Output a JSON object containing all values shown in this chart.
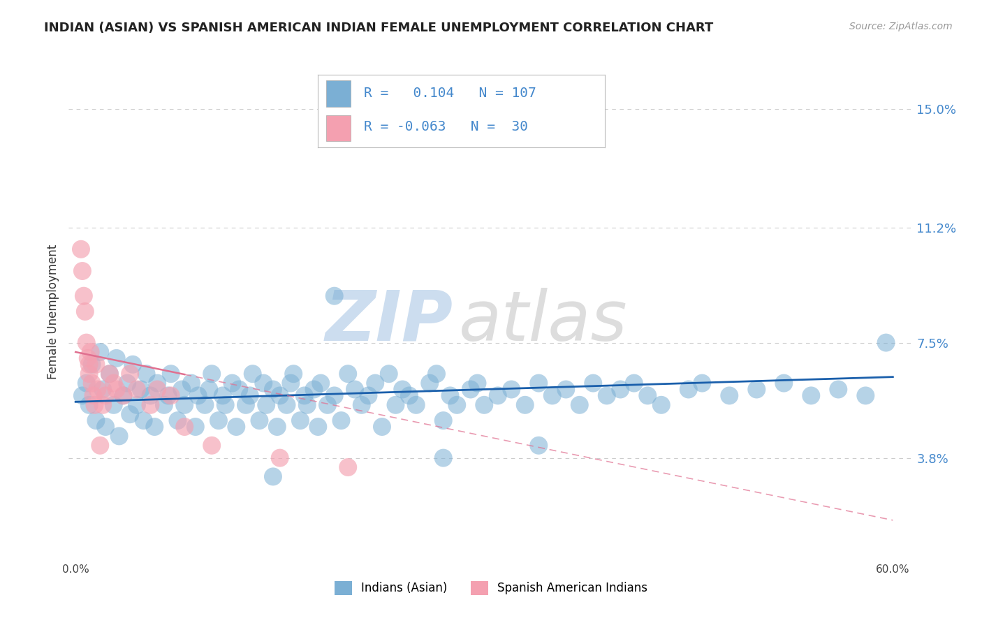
{
  "title": "INDIAN (ASIAN) VS SPANISH AMERICAN INDIAN FEMALE UNEMPLOYMENT CORRELATION CHART",
  "source": "Source: ZipAtlas.com",
  "ylabel": "Female Unemployment",
  "xlim": [
    -0.005,
    0.615
  ],
  "ylim": [
    0.005,
    0.165
  ],
  "yticks": [
    0.038,
    0.075,
    0.112,
    0.15
  ],
  "ytick_labels": [
    "3.8%",
    "7.5%",
    "11.2%",
    "15.0%"
  ],
  "xticks": [
    0.0,
    0.1,
    0.2,
    0.3,
    0.4,
    0.5,
    0.6
  ],
  "xtick_labels": [
    "0.0%",
    "",
    "",
    "",
    "",
    "",
    "60.0%"
  ],
  "legend1_label": "Indians (Asian)",
  "legend2_label": "Spanish American Indians",
  "R1": 0.104,
  "N1": 107,
  "R2": -0.063,
  "N2": 30,
  "blue_color": "#7BAFD4",
  "pink_color": "#F4A0B0",
  "line_blue": "#1A5FAB",
  "line_pink": "#E07090",
  "watermark_zip": "ZIP",
  "watermark_atlas": "atlas",
  "title_color": "#222222",
  "label_color": "#4488CC",
  "background_color": "#FFFFFF",
  "grid_color": "#CCCCCC",
  "source_color": "#999999",
  "blue_scatter_x": [
    0.005,
    0.008,
    0.01,
    0.012,
    0.015,
    0.018,
    0.02,
    0.022,
    0.025,
    0.028,
    0.03,
    0.032,
    0.035,
    0.038,
    0.04,
    0.042,
    0.045,
    0.048,
    0.05,
    0.052,
    0.055,
    0.058,
    0.06,
    0.065,
    0.068,
    0.07,
    0.075,
    0.078,
    0.08,
    0.085,
    0.088,
    0.09,
    0.095,
    0.098,
    0.1,
    0.105,
    0.108,
    0.11,
    0.115,
    0.118,
    0.12,
    0.125,
    0.128,
    0.13,
    0.135,
    0.138,
    0.14,
    0.145,
    0.148,
    0.15,
    0.155,
    0.158,
    0.16,
    0.165,
    0.168,
    0.17,
    0.175,
    0.178,
    0.18,
    0.185,
    0.19,
    0.195,
    0.2,
    0.205,
    0.21,
    0.215,
    0.22,
    0.225,
    0.23,
    0.235,
    0.24,
    0.245,
    0.25,
    0.26,
    0.265,
    0.27,
    0.275,
    0.28,
    0.29,
    0.295,
    0.3,
    0.31,
    0.32,
    0.33,
    0.34,
    0.35,
    0.36,
    0.37,
    0.38,
    0.39,
    0.4,
    0.41,
    0.42,
    0.43,
    0.45,
    0.46,
    0.48,
    0.5,
    0.52,
    0.54,
    0.56,
    0.58,
    0.595,
    0.34,
    0.27,
    0.19,
    0.145
  ],
  "blue_scatter_y": [
    0.058,
    0.062,
    0.055,
    0.068,
    0.05,
    0.072,
    0.06,
    0.048,
    0.065,
    0.055,
    0.07,
    0.045,
    0.058,
    0.062,
    0.052,
    0.068,
    0.055,
    0.06,
    0.05,
    0.065,
    0.058,
    0.048,
    0.062,
    0.055,
    0.058,
    0.065,
    0.05,
    0.06,
    0.055,
    0.062,
    0.048,
    0.058,
    0.055,
    0.06,
    0.065,
    0.05,
    0.058,
    0.055,
    0.062,
    0.048,
    0.06,
    0.055,
    0.058,
    0.065,
    0.05,
    0.062,
    0.055,
    0.06,
    0.048,
    0.058,
    0.055,
    0.062,
    0.065,
    0.05,
    0.058,
    0.055,
    0.06,
    0.048,
    0.062,
    0.055,
    0.058,
    0.05,
    0.065,
    0.06,
    0.055,
    0.058,
    0.062,
    0.048,
    0.065,
    0.055,
    0.06,
    0.058,
    0.055,
    0.062,
    0.065,
    0.05,
    0.058,
    0.055,
    0.06,
    0.062,
    0.055,
    0.058,
    0.06,
    0.055,
    0.062,
    0.058,
    0.06,
    0.055,
    0.062,
    0.058,
    0.06,
    0.062,
    0.058,
    0.055,
    0.06,
    0.062,
    0.058,
    0.06,
    0.062,
    0.058,
    0.06,
    0.058,
    0.075,
    0.042,
    0.038,
    0.09,
    0.032
  ],
  "pink_scatter_x": [
    0.004,
    0.005,
    0.006,
    0.007,
    0.008,
    0.009,
    0.01,
    0.01,
    0.011,
    0.012,
    0.013,
    0.014,
    0.015,
    0.016,
    0.018,
    0.02,
    0.022,
    0.025,
    0.028,
    0.03,
    0.035,
    0.04,
    0.045,
    0.055,
    0.06,
    0.07,
    0.08,
    0.1,
    0.15,
    0.2
  ],
  "pink_scatter_y": [
    0.105,
    0.098,
    0.09,
    0.085,
    0.075,
    0.07,
    0.068,
    0.065,
    0.072,
    0.062,
    0.058,
    0.055,
    0.068,
    0.06,
    0.042,
    0.055,
    0.058,
    0.065,
    0.062,
    0.06,
    0.058,
    0.065,
    0.06,
    0.055,
    0.06,
    0.058,
    0.048,
    0.042,
    0.038,
    0.035
  ],
  "blue_trend_x": [
    0.0,
    0.6
  ],
  "blue_trend_y": [
    0.056,
    0.064
  ],
  "pink_trend_x0": 0.0,
  "pink_trend_y0": 0.072,
  "pink_trend_x1": 0.6,
  "pink_trend_y1": 0.018
}
